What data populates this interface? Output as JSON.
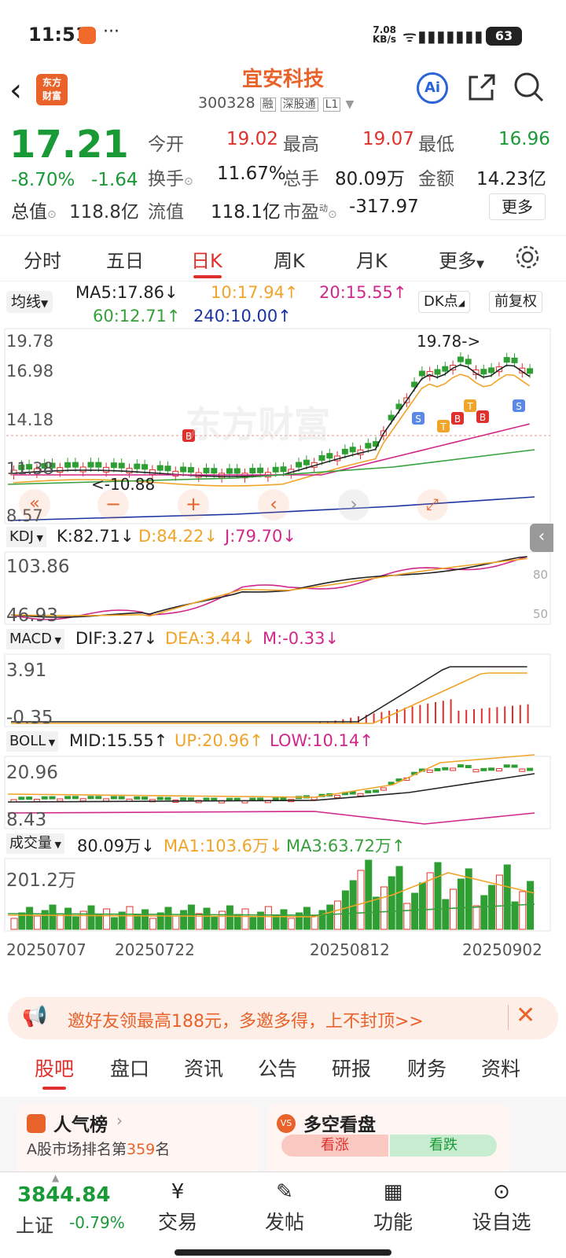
{
  "status": {
    "time": "11:51",
    "net_speed_top": "7.08",
    "net_speed_bottom": "KB/s",
    "battery": "63"
  },
  "header": {
    "logo_line1": "东方",
    "logo_line2": "财富",
    "title": "宜安科技",
    "code": "300328",
    "tag1": "融",
    "tag2": "深股通",
    "tag3": "L1",
    "ai": "Ai"
  },
  "quote": {
    "price": "17.21",
    "change_pct": "-8.70%",
    "change": "-1.64",
    "open_label": "今开",
    "open": "19.02",
    "high_label": "最高",
    "high": "19.07",
    "low_label": "最低",
    "low": "16.96",
    "turnover_label": "换手",
    "turnover": "11.67%",
    "volume_label": "总手",
    "volume": "80.09万",
    "amount_label": "金额",
    "amount": "14.23亿",
    "mcap_label": "总值",
    "mcap": "118.8亿",
    "float_label": "流值",
    "float_cap": "118.1亿",
    "pe_label": "市盈",
    "pe_sup": "动",
    "pe": "-317.97",
    "more": "更多"
  },
  "tabs": [
    "分时",
    "五日",
    "日K",
    "周K",
    "月K",
    "更多"
  ],
  "chart": {
    "ma_label": "均线",
    "ma5": "MA5:17.86↓",
    "ma10": "10:17.94↑",
    "ma20": "20:15.55↑",
    "ma60": "60:12.71↑",
    "ma240": "240:10.00↑",
    "dk_label": "DK点",
    "adj_label": "前复权",
    "y_high": "19.78",
    "y_2": "16.98",
    "y_3": "14.18",
    "y_4": "11.38",
    "y_low": "8.57",
    "peak_note": "19.78->",
    "low_note": "<-10.88",
    "watermark": "东方财富",
    "kdj_label": "KDJ",
    "kdj_k": "K:82.71↓",
    "kdj_d": "D:84.22↓",
    "kdj_j": "J:79.70↓",
    "kdj_top": "103.86",
    "kdj_bot": "46.93",
    "kdj_r1": "80",
    "kdj_r2": "50",
    "macd_label": "MACD",
    "dif": "DIF:3.27↓",
    "dea": "DEA:3.44↓",
    "m": "M:-0.33↓",
    "macd_top": "3.91",
    "macd_bot": "-0.35",
    "boll_label": "BOLL",
    "mid": "MID:15.55↑",
    "up": "UP:20.96↑",
    "low": "LOW:10.14↑",
    "boll_top": "20.96",
    "boll_bot": "8.43",
    "vol_label": "成交量",
    "vol": "80.09万↓",
    "vol_ma1": "MA1:103.6万↓",
    "vol_ma3": "MA3:63.72万↑",
    "vol_top": "201.2万",
    "dates": [
      "20250707",
      "20250722",
      "20250812",
      "20250902"
    ],
    "marks": {
      "b": "B",
      "s": "S",
      "t": "T"
    },
    "colors": {
      "up": "#e0302b",
      "down": "#2f9e33",
      "ma5": "#222222",
      "ma10": "#f0a42a",
      "ma20": "#d0288a",
      "ma60": "#36a03a",
      "ma240": "#1a33a0"
    }
  },
  "banner": {
    "text": "邀好友领最高188元，多邀多得，上不封顶>>"
  },
  "subtabs": [
    "股吧",
    "盘口",
    "资讯",
    "公告",
    "研报",
    "财务",
    "资料"
  ],
  "cards": {
    "hot_title": "人气榜",
    "hot_sub_prefix": "A股市场排名第",
    "hot_rank": "359",
    "hot_sub_suffix": "名",
    "vs_title": "多空看盘",
    "bull": "看涨",
    "bear": "看跌"
  },
  "bottom": {
    "index_value": "3844.84",
    "index_name": "上证",
    "index_change": "-0.79%",
    "trade": "交易",
    "post": "发帖",
    "func": "功能",
    "watch": "设自选"
  }
}
